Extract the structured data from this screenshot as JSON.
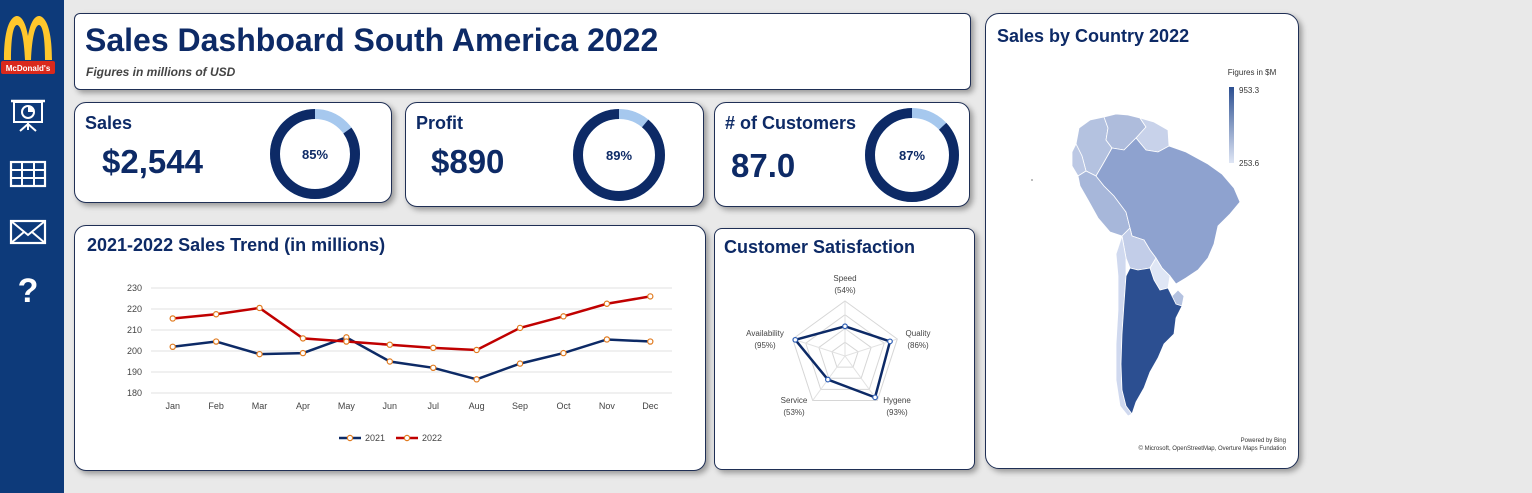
{
  "brand": {
    "logo_text": "McDonald's",
    "colors": {
      "sidebar": "#0d3a7a",
      "primary": "#0d2a66",
      "series_2021": "#0d2a66",
      "series_2022": "#c00000",
      "donut_track": "#a6c8ee",
      "logo_red": "#da291c",
      "logo_yellow": "#ffc72c"
    }
  },
  "sidebar": {
    "icons": [
      "presentation-icon",
      "table-icon",
      "mail-icon",
      "help-icon"
    ]
  },
  "header": {
    "title": "Sales Dashboard South America 2022",
    "subtitle": "Figures in millions of USD"
  },
  "kpis": [
    {
      "label": "Sales",
      "value": "$2,544",
      "percent": 85,
      "percent_label": "85%"
    },
    {
      "label": "Profit",
      "value": "$890",
      "percent": 89,
      "percent_label": "89%"
    },
    {
      "label": "# of Customers",
      "value": "87.0",
      "percent": 87,
      "percent_label": "87%"
    }
  ],
  "trend": {
    "title": "2021-2022 Sales Trend (in millions)"
  },
  "satisfaction": {
    "title": "Customer Satisfaction"
  },
  "map": {
    "title": "Sales by Country 2022",
    "legend_title": "Figures in $M",
    "legend_max": "953.3",
    "legend_min": "253.6",
    "credit_1": "Powered by Bing",
    "credit_2": "© Microsoft, OpenStreetMap, Overture Maps Fundation"
  },
  "chart_data": [
    {
      "type": "line",
      "title": "2021-2022 Sales Trend (in millions)",
      "categories": [
        "Jan",
        "Feb",
        "Mar",
        "Apr",
        "May",
        "Jun",
        "Jul",
        "Aug",
        "Sep",
        "Oct",
        "Nov",
        "Dec"
      ],
      "series": [
        {
          "name": "2021",
          "values": [
            202,
            204.5,
            198.5,
            199,
            206.5,
            195,
            192,
            186.5,
            194,
            199,
            205.5,
            204.5
          ]
        },
        {
          "name": "2022",
          "values": [
            215.5,
            217.5,
            220.5,
            206,
            204.5,
            203,
            201.5,
            200.5,
            211,
            216.5,
            222.5,
            226
          ]
        }
      ],
      "ylim": [
        180,
        230
      ],
      "yticks": [
        180,
        190,
        200,
        210,
        220,
        230
      ],
      "grid": true,
      "legend": "bottom"
    },
    {
      "type": "radar",
      "title": "Customer Satisfaction",
      "axes": [
        {
          "name": "Speed",
          "value": 54,
          "label": "(54%)"
        },
        {
          "name": "Quality",
          "value": 86,
          "label": "(86%)"
        },
        {
          "name": "Hygene",
          "value": 93,
          "label": "(93%)"
        },
        {
          "name": "Service",
          "value": 53,
          "label": "(53%)"
        },
        {
          "name": "Availability",
          "value": 95,
          "label": "(95%)"
        }
      ],
      "max": 100
    }
  ]
}
